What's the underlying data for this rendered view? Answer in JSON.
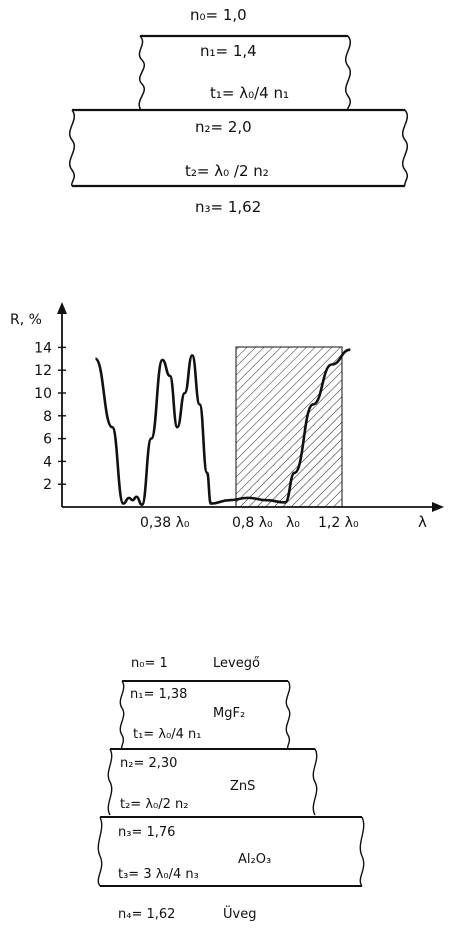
{
  "top_diagram": {
    "n0": "n₀= 1,0",
    "n1": "n₁= 1,4",
    "t1": "t₁= λ₀/4 n₁",
    "n2": "n₂= 2,0",
    "t2": "t₂= λ₀ /2 n₂",
    "n3": "n₃= 1,62"
  },
  "chart_data": {
    "type": "line",
    "ylabel": "R, %",
    "xlabel": "λ",
    "y_ticks": [
      "2",
      "4",
      "6",
      "8",
      "10",
      "12",
      "14"
    ],
    "x_tick_labels": [
      "0,38 λ₀",
      "0,8 λ₀",
      "λ₀",
      "1,2 λ₀"
    ],
    "ylim": [
      0,
      14
    ],
    "shaded_band": [
      "0,8 λ₀",
      "1,2 λ₀"
    ],
    "series": [
      {
        "points": [
          [
            0.18,
            13
          ],
          [
            0.27,
            7
          ],
          [
            0.33,
            0.3
          ],
          [
            0.36,
            0.8
          ],
          [
            0.38,
            0.6
          ],
          [
            0.4,
            0.9
          ],
          [
            0.43,
            0.2
          ],
          [
            0.48,
            6
          ],
          [
            0.54,
            12.9
          ],
          [
            0.58,
            11.5
          ],
          [
            0.62,
            7
          ],
          [
            0.66,
            10
          ],
          [
            0.7,
            13.3
          ],
          [
            0.74,
            9
          ],
          [
            0.78,
            3
          ],
          [
            0.8,
            0.3
          ],
          [
            0.9,
            0.6
          ],
          [
            1.0,
            0.8
          ],
          [
            1.1,
            0.6
          ],
          [
            1.2,
            0.4
          ],
          [
            1.25,
            3
          ],
          [
            1.35,
            9
          ],
          [
            1.45,
            12.5
          ],
          [
            1.55,
            13.8
          ]
        ]
      }
    ]
  },
  "bottom_diagram": {
    "n0": "n₀= 1",
    "air": "Levegő",
    "n1": "n₁= 1,38",
    "mgf2": "MgF₂",
    "t1": "t₁= λ₀/4 n₁",
    "n2": "n₂= 2,30",
    "zns": "ZnS",
    "t2": "t₂= λ₀/2 n₂",
    "n3": "n₃= 1,76",
    "al2o3": "Al₂O₃",
    "t3": "t₃= 3 λ₀/4 n₃",
    "n4": "n₄= 1,62",
    "glass": "Üveg"
  }
}
